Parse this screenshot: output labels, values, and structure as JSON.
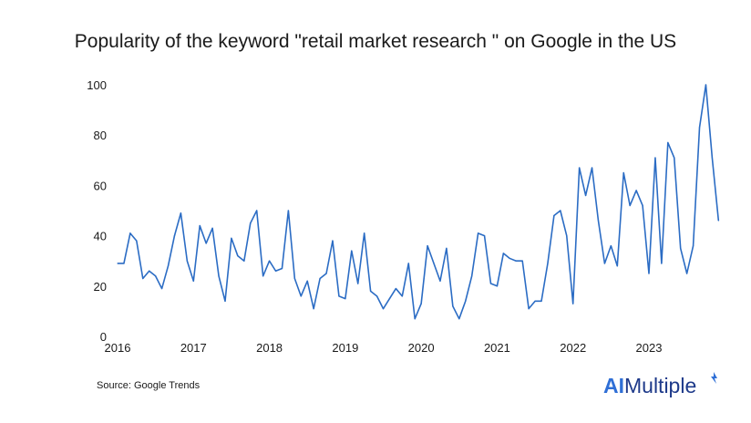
{
  "chart_data": {
    "type": "line",
    "title": "Popularity of the keyword \"retail market research \" on Google in the US",
    "xlabel": "",
    "ylabel": "",
    "ylim": [
      0,
      100
    ],
    "yticks": [
      0,
      20,
      40,
      60,
      80,
      100
    ],
    "xticks": [
      "2016",
      "2017",
      "2018",
      "2019",
      "2020",
      "2021",
      "2022",
      "2023"
    ],
    "x_start": "2016-01",
    "x_interval": "month",
    "line_color": "#2b6cc4",
    "grid": false,
    "series": [
      {
        "values": [
          29,
          29,
          41,
          38,
          23,
          26,
          24,
          19,
          28,
          40,
          49,
          30,
          22,
          44,
          37,
          43,
          24,
          14,
          39,
          32,
          30,
          45,
          50,
          24,
          30,
          26,
          27,
          50,
          23,
          16,
          22,
          11,
          23,
          25,
          38,
          16,
          15,
          34,
          21,
          41,
          18,
          16,
          11,
          15,
          19,
          16,
          29,
          7,
          13,
          36,
          29,
          22,
          35,
          12,
          7,
          14,
          24,
          41,
          40,
          21,
          20,
          33,
          31,
          30,
          30,
          11,
          14,
          14,
          29,
          48,
          50,
          40,
          13,
          67,
          56,
          67,
          46,
          29,
          36,
          28,
          65,
          52,
          58,
          52,
          25,
          71,
          29,
          77,
          71,
          35,
          25,
          36,
          83,
          100,
          71,
          46
        ]
      }
    ]
  },
  "source": "Source: Google Trends",
  "logo": {
    "ai": "AI",
    "rest": "Multiple"
  }
}
